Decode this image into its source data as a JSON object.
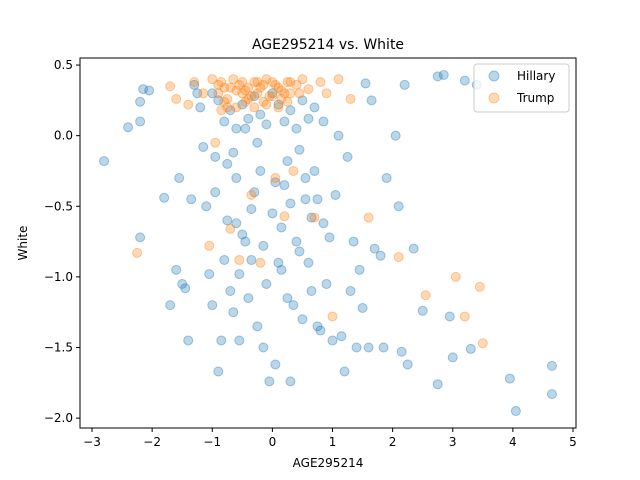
{
  "chart_data": {
    "type": "scatter",
    "title": "AGE295214 vs. White",
    "xlabel": "AGE295214",
    "ylabel": "White",
    "xlim": [
      -3.2,
      5.05
    ],
    "ylim": [
      -2.07,
      0.55
    ],
    "x_ticks": [
      -3,
      -2,
      -1,
      0,
      1,
      2,
      3,
      4,
      5
    ],
    "y_ticks": [
      -2.0,
      -1.5,
      -1.0,
      -0.5,
      0.0,
      0.5
    ],
    "x_tick_labels": [
      "−3",
      "−2",
      "−1",
      "0",
      "1",
      "2",
      "3",
      "4",
      "5"
    ],
    "y_tick_labels": [
      "−2.0",
      "−1.5",
      "−1.0",
      "−0.5",
      "0.0",
      "0.5"
    ],
    "grid": false,
    "legend_position": "top-right",
    "marker_alpha": 0.3,
    "series": [
      {
        "name": "Hillary",
        "color": "#1f77b4",
        "points": [
          [
            -2.8,
            -0.18
          ],
          [
            -2.4,
            0.06
          ],
          [
            -2.2,
            0.1
          ],
          [
            -2.2,
            0.24
          ],
          [
            -2.15,
            0.33
          ],
          [
            -2.05,
            0.32
          ],
          [
            -2.2,
            -0.72
          ],
          [
            -1.8,
            -0.44
          ],
          [
            -1.7,
            -1.2
          ],
          [
            -1.6,
            -0.95
          ],
          [
            -1.55,
            -0.3
          ],
          [
            -1.5,
            -1.05
          ],
          [
            -1.45,
            -1.08
          ],
          [
            -1.4,
            -1.45
          ],
          [
            -1.35,
            -0.45
          ],
          [
            -1.3,
            0.36
          ],
          [
            -1.25,
            0.3
          ],
          [
            -1.2,
            0.2
          ],
          [
            -1.15,
            -0.08
          ],
          [
            -1.1,
            -0.5
          ],
          [
            -1.05,
            -0.98
          ],
          [
            -1.0,
            -1.2
          ],
          [
            -0.95,
            -0.15
          ],
          [
            -0.9,
            -1.67
          ],
          [
            -0.85,
            -1.45
          ],
          [
            -0.8,
            -0.88
          ],
          [
            -0.75,
            -0.6
          ],
          [
            -0.7,
            -1.1
          ],
          [
            -0.65,
            -1.25
          ],
          [
            -0.6,
            -0.3
          ],
          [
            -0.55,
            -1.45
          ],
          [
            -0.5,
            -0.7
          ],
          [
            -0.45,
            0.05
          ],
          [
            -0.4,
            -1.15
          ],
          [
            -0.35,
            -0.88
          ],
          [
            -0.3,
            -0.4
          ],
          [
            -0.25,
            -1.35
          ],
          [
            -0.2,
            -0.25
          ],
          [
            -0.15,
            -1.5
          ],
          [
            -0.1,
            -1.05
          ],
          [
            -0.05,
            -1.74
          ],
          [
            0.0,
            -0.55
          ],
          [
            0.05,
            -1.62
          ],
          [
            0.1,
            -0.9
          ],
          [
            0.15,
            -0.65
          ],
          [
            0.2,
            -0.35
          ],
          [
            0.25,
            -1.15
          ],
          [
            0.3,
            -1.74
          ],
          [
            0.35,
            -1.2
          ],
          [
            0.4,
            -0.75
          ],
          [
            0.45,
            -0.1
          ],
          [
            0.5,
            -1.3
          ],
          [
            0.55,
            -0.45
          ],
          [
            0.6,
            -0.9
          ],
          [
            0.65,
            -1.1
          ],
          [
            0.7,
            -0.25
          ],
          [
            0.75,
            -1.35
          ],
          [
            0.8,
            -1.38
          ],
          [
            0.85,
            0.1
          ],
          [
            0.9,
            -1.05
          ],
          [
            0.95,
            -0.72
          ],
          [
            1.0,
            -1.45
          ],
          [
            1.05,
            -0.42
          ],
          [
            1.1,
            0.0
          ],
          [
            1.15,
            -1.42
          ],
          [
            1.2,
            -1.67
          ],
          [
            1.25,
            -0.15
          ],
          [
            1.3,
            -1.1
          ],
          [
            1.35,
            -0.75
          ],
          [
            1.4,
            -1.5
          ],
          [
            1.45,
            -0.95
          ],
          [
            1.5,
            -1.22
          ],
          [
            1.55,
            0.37
          ],
          [
            1.6,
            -1.5
          ],
          [
            1.65,
            0.25
          ],
          [
            1.7,
            -0.8
          ],
          [
            1.8,
            -0.85
          ],
          [
            1.85,
            -1.5
          ],
          [
            1.9,
            -0.3
          ],
          [
            2.05,
            -0.0
          ],
          [
            2.1,
            -0.5
          ],
          [
            2.15,
            -1.53
          ],
          [
            2.2,
            0.36
          ],
          [
            2.25,
            -1.62
          ],
          [
            2.35,
            -0.8
          ],
          [
            2.5,
            -1.24
          ],
          [
            2.75,
            0.42
          ],
          [
            2.75,
            -1.76
          ],
          [
            2.85,
            0.43
          ],
          [
            2.95,
            -1.28
          ],
          [
            3.0,
            -1.57
          ],
          [
            3.2,
            0.39
          ],
          [
            3.3,
            -1.51
          ],
          [
            3.4,
            0.36
          ],
          [
            3.95,
            -1.72
          ],
          [
            4.05,
            -1.95
          ],
          [
            4.65,
            -1.63
          ],
          [
            4.65,
            -1.83
          ],
          [
            -1.0,
            0.3
          ],
          [
            -0.9,
            0.25
          ],
          [
            -0.8,
            0.1
          ],
          [
            -0.7,
            0.18
          ],
          [
            -0.6,
            0.05
          ],
          [
            -0.5,
            0.22
          ],
          [
            -0.4,
            0.12
          ],
          [
            -0.3,
            0.28
          ],
          [
            -0.2,
            0.15
          ],
          [
            -0.1,
            0.08
          ],
          [
            0.0,
            0.3
          ],
          [
            0.1,
            0.22
          ],
          [
            0.2,
            0.1
          ],
          [
            0.3,
            0.18
          ],
          [
            0.4,
            0.05
          ],
          [
            0.5,
            0.25
          ],
          [
            0.6,
            0.12
          ],
          [
            0.7,
            0.2
          ],
          [
            -0.95,
            -0.4
          ],
          [
            -0.6,
            -0.62
          ],
          [
            -0.35,
            -0.52
          ],
          [
            0.05,
            -0.33
          ],
          [
            0.3,
            -0.48
          ],
          [
            0.65,
            -0.58
          ],
          [
            -0.75,
            -0.2
          ],
          [
            -0.15,
            -0.78
          ],
          [
            0.15,
            -0.95
          ],
          [
            0.45,
            -0.82
          ],
          [
            0.85,
            -0.62
          ],
          [
            -0.55,
            -0.98
          ],
          [
            -0.25,
            -0.05
          ],
          [
            0.25,
            -0.18
          ],
          [
            0.55,
            -0.3
          ],
          [
            -0.65,
            -0.12
          ],
          [
            0.75,
            -0.45
          ],
          [
            -0.45,
            -0.75
          ]
        ]
      },
      {
        "name": "Trump",
        "color": "#ff7f0e",
        "points": [
          [
            -2.25,
            -0.83
          ],
          [
            -1.7,
            0.35
          ],
          [
            -1.6,
            0.26
          ],
          [
            -1.4,
            0.22
          ],
          [
            -1.3,
            0.38
          ],
          [
            -1.15,
            0.3
          ],
          [
            -1.05,
            -0.78
          ],
          [
            -1.0,
            0.4
          ],
          [
            -0.95,
            -0.05
          ],
          [
            -0.9,
            0.36
          ],
          [
            -0.85,
            0.18
          ],
          [
            -0.8,
            0.34
          ],
          [
            -0.75,
            0.26
          ],
          [
            -0.7,
            -0.66
          ],
          [
            -0.65,
            0.4
          ],
          [
            -0.6,
            0.32
          ],
          [
            -0.55,
            -0.88
          ],
          [
            -0.5,
            0.38
          ],
          [
            -0.45,
            0.24
          ],
          [
            -0.4,
            0.34
          ],
          [
            -0.35,
            -0.42
          ],
          [
            -0.3,
            0.38
          ],
          [
            -0.25,
            0.3
          ],
          [
            -0.2,
            -0.9
          ],
          [
            -0.15,
            0.36
          ],
          [
            -0.1,
            0.4
          ],
          [
            -0.05,
            0.28
          ],
          [
            0.0,
            0.38
          ],
          [
            0.05,
            -0.3
          ],
          [
            0.1,
            0.34
          ],
          [
            0.15,
            0.26
          ],
          [
            0.2,
            -0.57
          ],
          [
            0.25,
            0.38
          ],
          [
            0.3,
            0.3
          ],
          [
            0.35,
            -0.25
          ],
          [
            0.4,
            0.36
          ],
          [
            0.5,
            0.4
          ],
          [
            0.6,
            0.33
          ],
          [
            0.7,
            -0.58
          ],
          [
            0.8,
            0.38
          ],
          [
            0.9,
            0.3
          ],
          [
            1.0,
            -1.28
          ],
          [
            1.1,
            0.4
          ],
          [
            1.3,
            0.26
          ],
          [
            1.6,
            -0.58
          ],
          [
            2.1,
            -0.86
          ],
          [
            2.55,
            -1.13
          ],
          [
            3.05,
            -1.0
          ],
          [
            3.2,
            -1.28
          ],
          [
            3.45,
            -1.07
          ],
          [
            3.5,
            -1.47
          ],
          [
            -0.9,
            0.3
          ],
          [
            -0.8,
            0.24
          ],
          [
            -0.7,
            0.34
          ],
          [
            -0.6,
            0.2
          ],
          [
            -0.5,
            0.3
          ],
          [
            -0.4,
            0.26
          ],
          [
            -0.3,
            0.2
          ],
          [
            -0.2,
            0.34
          ],
          [
            -0.1,
            0.22
          ],
          [
            0.0,
            0.28
          ],
          [
            0.1,
            0.2
          ],
          [
            0.2,
            0.3
          ],
          [
            -0.85,
            0.38
          ],
          [
            -0.55,
            0.36
          ],
          [
            -0.25,
            0.38
          ],
          [
            0.05,
            0.36
          ],
          [
            0.3,
            0.38
          ],
          [
            -0.15,
            0.24
          ],
          [
            0.15,
            0.32
          ],
          [
            -0.45,
            0.32
          ],
          [
            -0.75,
            0.2
          ],
          [
            0.25,
            0.24
          ],
          [
            -0.35,
            0.28
          ],
          [
            0.45,
            0.3
          ]
        ]
      }
    ]
  }
}
